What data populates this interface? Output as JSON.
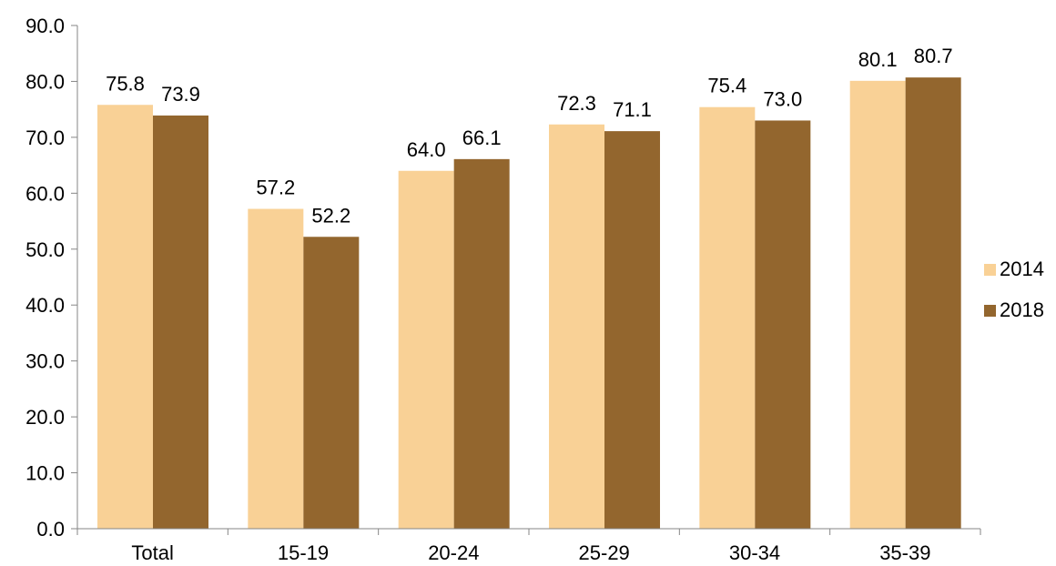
{
  "chart_data": {
    "type": "bar",
    "categories": [
      "Total",
      "15-19",
      "20-24",
      "25-29",
      "30-34",
      "35-39"
    ],
    "series": [
      {
        "name": "2014",
        "color": "#F9D196",
        "values": [
          75.8,
          57.2,
          64.0,
          72.3,
          75.4,
          80.1
        ]
      },
      {
        "name": "2018",
        "color": "#93662E",
        "values": [
          73.9,
          52.2,
          66.1,
          71.1,
          73.0,
          80.7
        ]
      }
    ],
    "yticks": [
      "0.0",
      "10.0",
      "20.0",
      "30.0",
      "40.0",
      "50.0",
      "60.0",
      "70.0",
      "80.0",
      "90.0"
    ],
    "ylim": [
      0,
      90
    ],
    "grid": false,
    "legend_position": "right"
  }
}
